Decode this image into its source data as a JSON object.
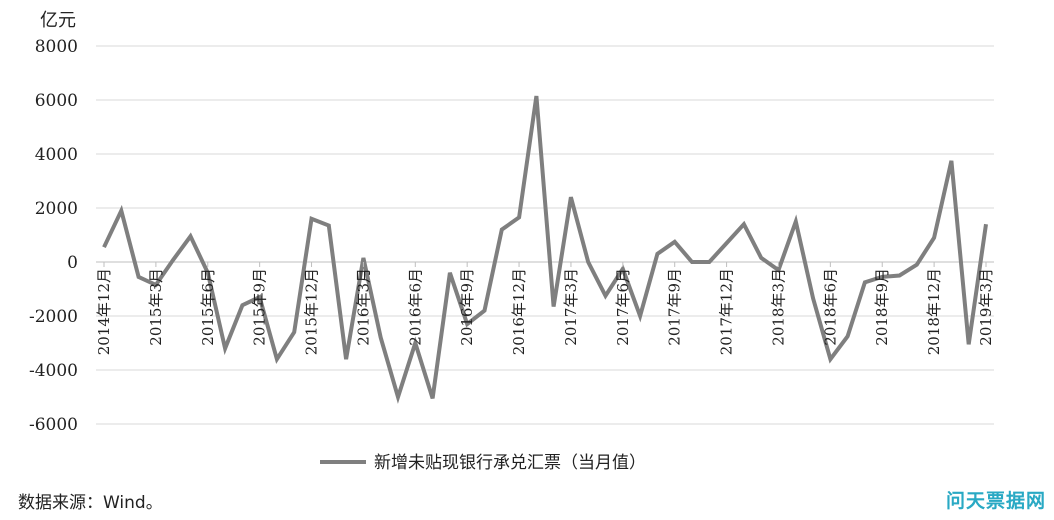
{
  "chart_data": {
    "type": "line",
    "y_unit": "亿元",
    "ylim": [
      -6000,
      8000
    ],
    "y_ticks": [
      8000,
      6000,
      4000,
      2000,
      0,
      -2000,
      -4000,
      -6000
    ],
    "grid": true,
    "legend_position": "bottom-center",
    "x_tick_labels": [
      "2014年12月",
      "2015年3月",
      "2015年6月",
      "2015年9月",
      "2015年12月",
      "2016年3月",
      "2016年6月",
      "2016年9月",
      "2016年12月",
      "2017年3月",
      "2017年6月",
      "2017年9月",
      "2017年12月",
      "2018年3月",
      "2018年6月",
      "2018年9月",
      "2018年12月",
      "2019年3月"
    ],
    "series": [
      {
        "name": "新增未贴现银行承兑汇票（当月值）",
        "color": "#7f7f7f",
        "values": [
          550,
          1900,
          -550,
          -850,
          80,
          950,
          -400,
          -3200,
          -1600,
          -1300,
          -3600,
          -2600,
          1600,
          1350,
          -3600,
          150,
          -2800,
          -5000,
          -3000,
          -5050,
          -400,
          -2300,
          -1800,
          1200,
          1650,
          6150,
          -1650,
          2400,
          0,
          -1250,
          -250,
          -2000,
          300,
          750,
          0,
          0,
          700,
          1400,
          150,
          -300,
          1500,
          -1350,
          -3600,
          -2750,
          -750,
          -550,
          -500,
          -100,
          900,
          3750,
          -3050,
          1400
        ]
      }
    ]
  },
  "source_note": "数据来源：Wind。",
  "watermark": "问天票据网"
}
